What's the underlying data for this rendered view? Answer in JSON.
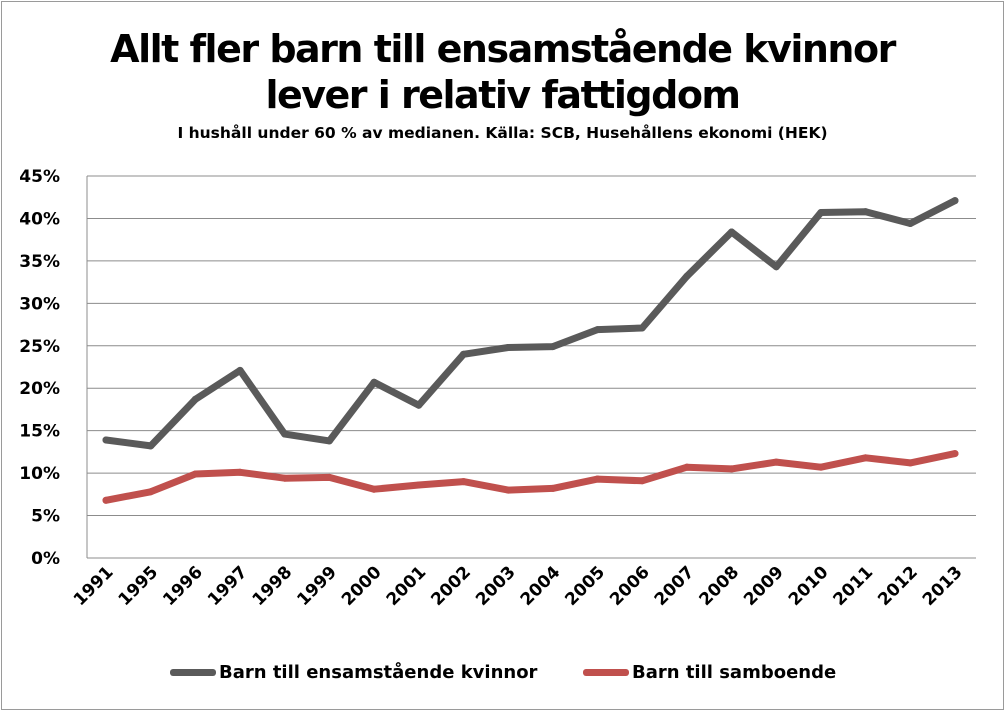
{
  "title_lines": [
    "Allt fler barn till ensamstående kvinnor",
    "lever i relativ fattigdom"
  ],
  "subtitle": "I hushåll under 60 % av medianen. Källa: SCB, Husehållens ekonomi (HEK)",
  "chart_data": {
    "type": "line",
    "title": "Allt fler barn till ensamstående kvinnor lever i relativ fattigdom",
    "subtitle": "I hushåll under 60 % av medianen. Källa: SCB, Husehållens ekonomi (HEK)",
    "categories": [
      "1991",
      "1995",
      "1996",
      "1997",
      "1998",
      "1999",
      "2000",
      "2001",
      "2002",
      "2003",
      "2004",
      "2005",
      "2006",
      "2007",
      "2008",
      "2009",
      "2010",
      "2011",
      "2012",
      "2013"
    ],
    "series": [
      {
        "name": "Barn till ensamstående kvinnor",
        "color": "#5a5a5a",
        "values": [
          13.9,
          13.2,
          18.7,
          22.1,
          14.6,
          13.8,
          20.7,
          18.0,
          24.0,
          24.8,
          24.9,
          26.9,
          27.1,
          33.2,
          38.4,
          34.3,
          40.7,
          40.8,
          39.4,
          42.1
        ]
      },
      {
        "name": "Barn till samboende",
        "color": "#c0504d",
        "values": [
          6.8,
          7.8,
          9.9,
          10.1,
          9.4,
          9.5,
          8.1,
          8.6,
          9.0,
          8.0,
          8.2,
          9.3,
          9.1,
          10.7,
          10.5,
          11.3,
          10.7,
          11.8,
          11.2,
          12.3
        ]
      }
    ],
    "yticks": [
      "0%",
      "5%",
      "10%",
      "15%",
      "20%",
      "25%",
      "30%",
      "35%",
      "40%",
      "45%"
    ],
    "ylim": [
      0,
      45
    ],
    "y_unit": "%",
    "grid": true,
    "legend_position": "bottom"
  }
}
